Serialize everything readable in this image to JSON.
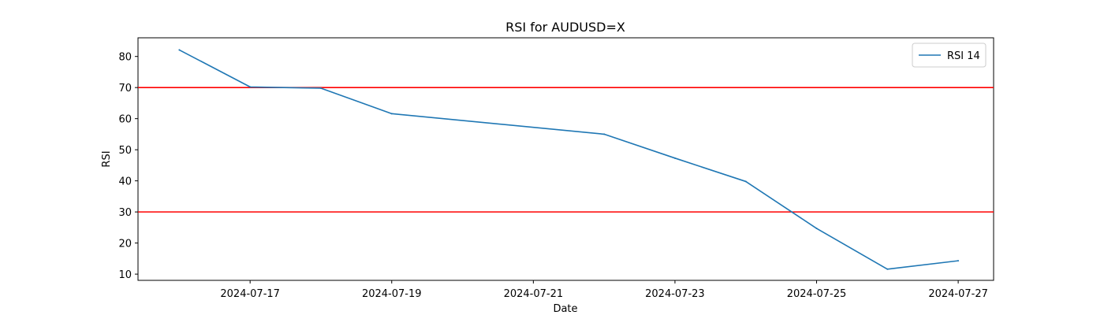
{
  "chart_data": {
    "type": "line",
    "title": "RSI for AUDUSD=X",
    "xlabel": "Date",
    "ylabel": "RSI",
    "x": [
      "2024-07-16",
      "2024-07-17",
      "2024-07-18",
      "2024-07-19",
      "2024-07-22",
      "2024-07-23",
      "2024-07-24",
      "2024-07-25",
      "2024-07-26",
      "2024-07-27"
    ],
    "x_ticks": [
      "2024-07-17",
      "2024-07-19",
      "2024-07-21",
      "2024-07-23",
      "2024-07-25",
      "2024-07-27"
    ],
    "xlim": [
      "2024-07-15 10:00",
      "2024-07-27 12:00"
    ],
    "ylim": [
      8,
      86
    ],
    "y_ticks": [
      10,
      20,
      30,
      40,
      50,
      60,
      70,
      80
    ],
    "grid": false,
    "legend_position": "top-right",
    "series": [
      {
        "name": "RSI 14",
        "color": "#1f77b4",
        "values": [
          82.1,
          70.2,
          69.8,
          61.6,
          55.0,
          47.3,
          39.8,
          24.7,
          11.6,
          14.3
        ]
      }
    ],
    "reference_lines": [
      {
        "y": 70,
        "color": "#ff0000"
      },
      {
        "y": 30,
        "color": "#ff0000"
      }
    ]
  }
}
